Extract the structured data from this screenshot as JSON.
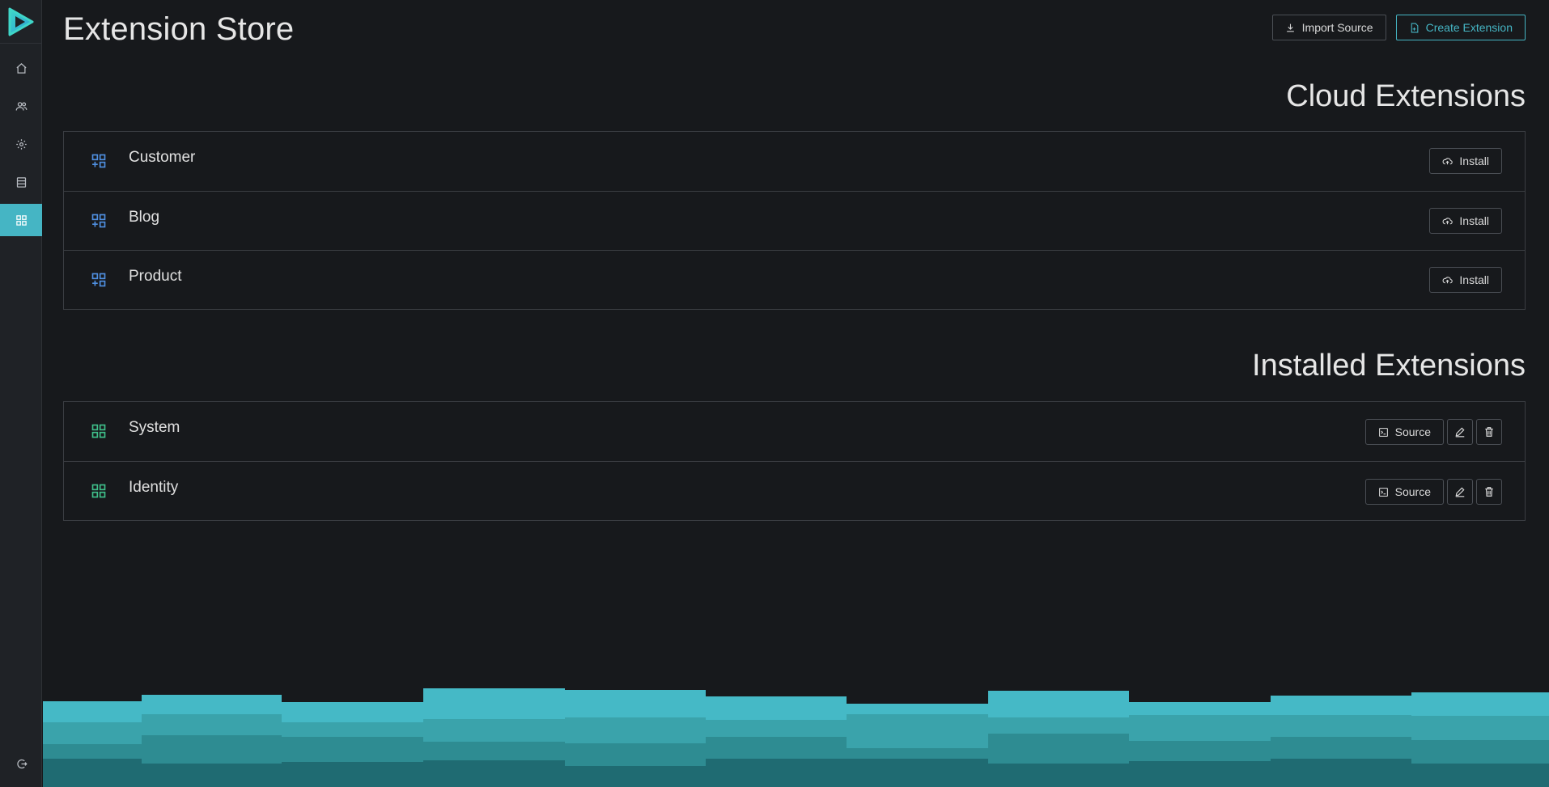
{
  "app": {
    "logo": "play-logo"
  },
  "sidebar": {
    "items": [
      {
        "icon": "home-icon",
        "name": "home"
      },
      {
        "icon": "users-icon",
        "name": "users"
      },
      {
        "icon": "gear-icon",
        "name": "settings"
      },
      {
        "icon": "database-icon",
        "name": "data"
      },
      {
        "icon": "extensions-icon",
        "name": "extensions",
        "active": true
      }
    ],
    "logout_icon": "logout-icon"
  },
  "header": {
    "title": "Extension Store",
    "import_label": "Import Source",
    "create_label": "Create Extension"
  },
  "cloud": {
    "title": "Cloud Extensions",
    "items": [
      {
        "name": "Customer",
        "action": "Install"
      },
      {
        "name": "Blog",
        "action": "Install"
      },
      {
        "name": "Product",
        "action": "Install"
      }
    ]
  },
  "installed": {
    "title": "Installed Extensions",
    "items": [
      {
        "name": "System",
        "action": "Source"
      },
      {
        "name": "Identity",
        "action": "Source"
      }
    ]
  },
  "colors": {
    "accent": "#45b5c4",
    "cloud_icon": "#4f8fe0",
    "installed_icon": "#3fbf8a",
    "background": "#17191c"
  }
}
